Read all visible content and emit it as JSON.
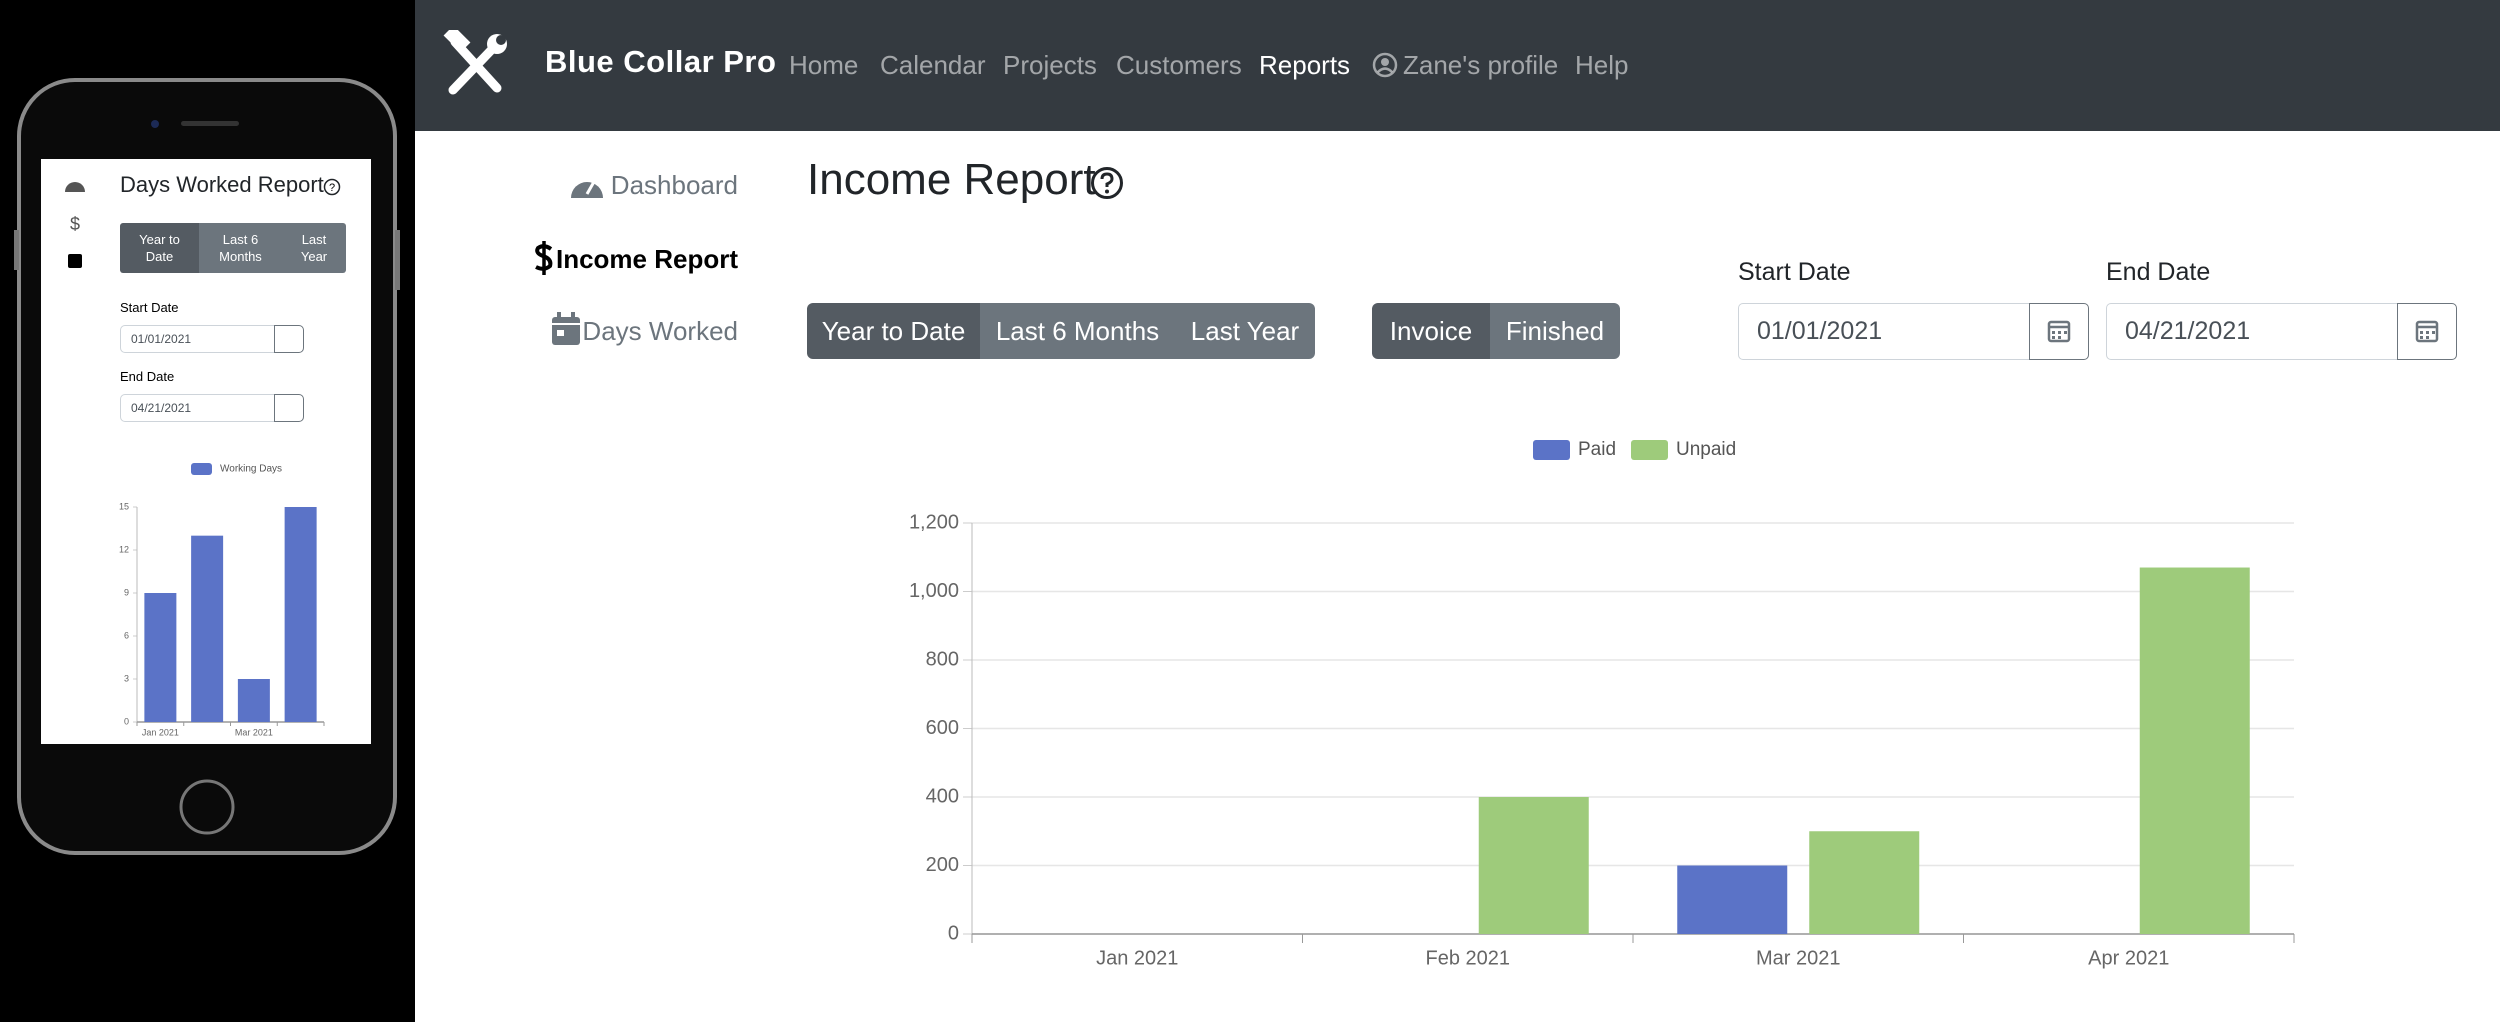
{
  "navbar": {
    "brand": "Blue Collar Pro",
    "links": [
      "Home",
      "Calendar",
      "Projects",
      "Customers",
      "Reports",
      "Zane's profile",
      "Help"
    ]
  },
  "sidebar": {
    "items": [
      "Dashboard",
      "Income Report",
      "Days Worked"
    ]
  },
  "title": "Income Report",
  "range_buttons": [
    "Year to Date",
    "Last 6 Months",
    "Last Year"
  ],
  "status_buttons": [
    "Invoice",
    "Finished"
  ],
  "start_date": {
    "label": "Start Date",
    "value": "01/01/2021"
  },
  "end_date": {
    "label": "End Date",
    "value": "04/21/2021"
  },
  "phone": {
    "title": "Days Worked Report",
    "range_buttons": [
      "Year to Date",
      "Last 6 Months",
      "Last Year"
    ],
    "start_date": {
      "label": "Start Date",
      "value": "01/01/2021"
    },
    "end_date": {
      "label": "End Date",
      "value": "04/21/2021"
    }
  },
  "chart_data": [
    {
      "type": "bar",
      "categories": [
        "Jan 2021",
        "Feb 2021",
        "Mar 2021",
        "Apr 2021"
      ],
      "series": [
        {
          "name": "Paid",
          "color": "#5b73c7",
          "values": [
            0,
            0,
            200,
            0
          ]
        },
        {
          "name": "Unpaid",
          "color": "#9ecb7b",
          "values": [
            0,
            400,
            300,
            1070
          ]
        }
      ],
      "ylim": [
        0,
        1200
      ],
      "yticks": [
        0,
        200,
        400,
        600,
        800,
        {
          "value": 1000,
          "label": "1,000"
        },
        {
          "value": 1200,
          "label": "1,200"
        }
      ],
      "grid": true,
      "legend": "top"
    },
    {
      "type": "bar",
      "categories": [
        "Jan 2021",
        null,
        "Mar 2021",
        null
      ],
      "series": [
        {
          "name": "Working Days",
          "color": "#5b73c7",
          "values": [
            9,
            13,
            3,
            15
          ]
        }
      ],
      "ylim": [
        0,
        15
      ],
      "yticks": [
        0,
        3,
        6,
        9,
        12,
        15
      ],
      "grid": false,
      "legend": "top"
    }
  ]
}
